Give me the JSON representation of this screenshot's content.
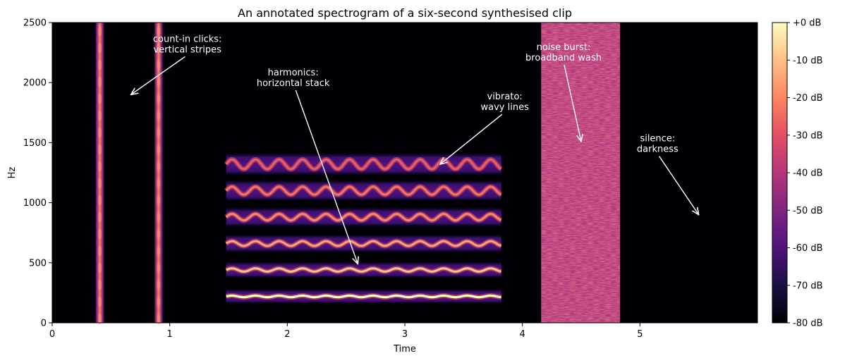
{
  "chart_data": {
    "type": "heatmap",
    "title": "An annotated spectrogram of a six-second synthesised clip",
    "xlabel": "Time",
    "ylabel": "Hz",
    "xlim": [
      0,
      6.0
    ],
    "ylim": [
      0,
      2500
    ],
    "x_ticks": [
      0,
      1,
      2,
      3,
      4,
      5
    ],
    "x_tick_labels": [
      "0",
      "1",
      "2",
      "3",
      "4",
      "5"
    ],
    "y_ticks": [
      0,
      500,
      1000,
      1500,
      2000,
      2500
    ],
    "y_tick_labels": [
      "0",
      "500",
      "1000",
      "1500",
      "2000",
      "2500"
    ],
    "colormap": "magma",
    "colorbar": {
      "range_db": [
        -80,
        0
      ],
      "ticks": [
        0,
        -10,
        -20,
        -30,
        -40,
        -50,
        -60,
        -70,
        -80
      ],
      "tick_labels": [
        "+0 dB",
        "-10 dB",
        "-20 dB",
        "-30 dB",
        "-40 dB",
        "-50 dB",
        "-60 dB",
        "-70 dB",
        "-80 dB"
      ]
    },
    "clicks": [
      {
        "time_start": 0.37,
        "time_end": 0.44
      },
      {
        "time_start": 0.87,
        "time_end": 0.94
      }
    ],
    "harmonic_tone": {
      "time_start": 1.48,
      "time_end": 3.82,
      "fundamental_hz": 220,
      "harmonic_frequencies_hz": [
        220,
        440,
        660,
        880,
        1100,
        1320
      ],
      "vibrato_rate_hz": 5,
      "vibrato_depth_hz_at_top": 40
    },
    "noise_burst": {
      "time_start": 4.16,
      "time_end": 4.83,
      "freq_min": 0,
      "freq_max": 2500
    },
    "annotations": [
      {
        "lines": [
          "count-in clicks:",
          "vertical stripes"
        ],
        "text_at": [
          1.15,
          2340
        ],
        "points_to": [
          0.67,
          1900
        ]
      },
      {
        "lines": [
          "harmonics:",
          "horizontal stack"
        ],
        "text_at": [
          2.05,
          2060
        ],
        "points_to": [
          2.6,
          490
        ]
      },
      {
        "lines": [
          "vibrato:",
          "wavy lines"
        ],
        "text_at": [
          3.85,
          1860
        ],
        "points_to": [
          3.3,
          1320
        ]
      },
      {
        "lines": [
          "noise burst:",
          "broadband wash"
        ],
        "text_at": [
          4.35,
          2270
        ],
        "points_to": [
          4.5,
          1510
        ]
      },
      {
        "lines": [
          "silence:",
          "darkness"
        ],
        "text_at": [
          5.15,
          1510
        ],
        "points_to": [
          5.5,
          900
        ]
      }
    ]
  }
}
